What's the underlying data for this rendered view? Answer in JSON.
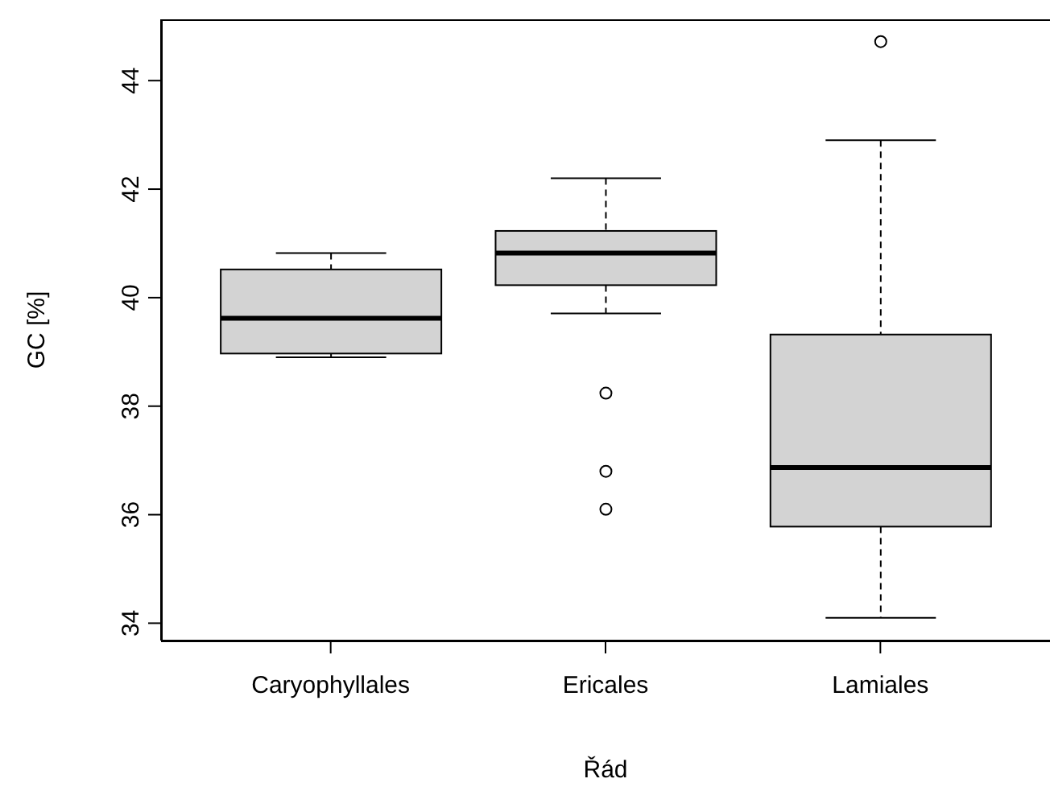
{
  "chart_data": {
    "type": "box",
    "xlabel": "Řád",
    "ylabel": "GC [%]",
    "categories": [
      "Caryophyllales",
      "Ericales",
      "Lamiales"
    ],
    "color": "#d3d3d3",
    "boxes": [
      {
        "low": 38.9,
        "q1": 38.97,
        "median": 39.62,
        "q3": 40.52,
        "high": 40.82
      },
      {
        "low": 39.71,
        "q1": 40.23,
        "median": 40.82,
        "q3": 41.23,
        "high": 42.2,
        "outliers": [
          38.24,
          36.8,
          36.1
        ]
      },
      {
        "low": 34.1,
        "q1": 35.78,
        "median": 36.87,
        "q3": 39.32,
        "high": 42.9,
        "outliers": [
          44.72
        ]
      }
    ],
    "ylim": [
      33.68,
      45.13
    ],
    "yticks": [
      34,
      36,
      38,
      40,
      42,
      44
    ]
  }
}
